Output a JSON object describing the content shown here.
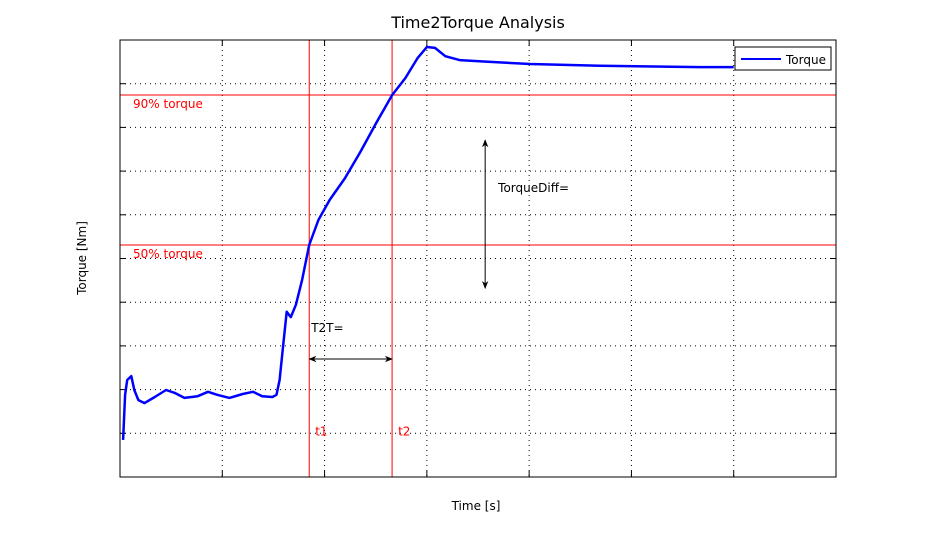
{
  "chart_data": {
    "type": "line",
    "title": "Time2Torque Analysis",
    "xlabel": "Time [s]",
    "ylabel": "Torque [Nm]",
    "xlim": [
      0,
      7
    ],
    "ylim": [
      0,
      10
    ],
    "grid": true,
    "grid_style": "dotted",
    "tick_labels_shown": false,
    "legend_position": "top-right",
    "series": [
      {
        "name": "Torque",
        "color": "#0000ff",
        "x": [
          0.03,
          0.05,
          0.07,
          0.11,
          0.14,
          0.18,
          0.24,
          0.34,
          0.45,
          0.54,
          0.63,
          0.76,
          0.86,
          0.95,
          1.07,
          1.2,
          1.3,
          1.39,
          1.49,
          1.53,
          1.56,
          1.6,
          1.63,
          1.67,
          1.72,
          1.78,
          1.85,
          1.94,
          2.05,
          2.2,
          2.35,
          2.5,
          2.66,
          2.79,
          2.91,
          3.0,
          3.08,
          3.18,
          3.32,
          3.62,
          4.01,
          4.69,
          5.67,
          6.0
        ],
        "y": [
          0.85,
          1.88,
          2.22,
          2.31,
          1.99,
          1.76,
          1.69,
          1.83,
          1.99,
          1.92,
          1.81,
          1.85,
          1.95,
          1.88,
          1.81,
          1.9,
          1.95,
          1.85,
          1.83,
          1.88,
          2.22,
          3.13,
          3.78,
          3.66,
          3.94,
          4.51,
          5.31,
          5.88,
          6.34,
          6.84,
          7.44,
          8.08,
          8.74,
          9.13,
          9.59,
          9.84,
          9.82,
          9.63,
          9.54,
          9.5,
          9.45,
          9.41,
          9.38,
          9.38
        ]
      }
    ],
    "reference_lines": {
      "color": "#ff0000",
      "horizontal": [
        {
          "label": "90% torque",
          "y": 8.74
        },
        {
          "label": "50% torque",
          "y": 5.31
        }
      ],
      "vertical": [
        {
          "label": "t1",
          "x": 1.85
        },
        {
          "label": "t2",
          "x": 2.66
        }
      ]
    },
    "annotations": [
      {
        "text": "T2T=",
        "arrow": "horizontal",
        "from_x": 1.85,
        "to_x": 2.66,
        "y": 2.7
      },
      {
        "text": "TorqueDiff=",
        "arrow": "vertical",
        "x": 3.57,
        "from_y": 4.32,
        "to_y": 7.71
      }
    ]
  }
}
